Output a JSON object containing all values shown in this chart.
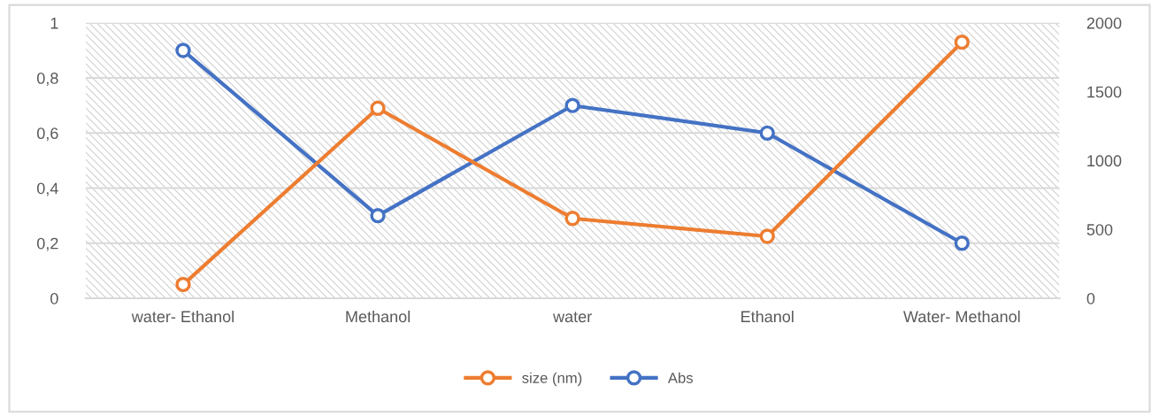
{
  "chart_data": {
    "type": "line",
    "categories": [
      "water- Ethanol",
      "Methanol",
      "water",
      "Ethanol",
      "Water- Methanol"
    ],
    "series": [
      {
        "name": "size (nm)",
        "color": "#ed7d31",
        "axis": "y2",
        "values": [
          100,
          1380,
          580,
          450,
          1860
        ]
      },
      {
        "name": "Abs",
        "color": "#4472c4",
        "values": [
          0.9,
          0.3,
          0.7,
          0.6,
          0.2
        ]
      }
    ],
    "ylim": [
      0,
      1
    ],
    "yticks": [
      0,
      {
        "value": 0.2,
        "label": "0,2"
      },
      {
        "value": 0.4,
        "label": "0,4"
      },
      {
        "value": 0.6,
        "label": "0,6"
      },
      {
        "value": 0.8,
        "label": "0,8"
      },
      1
    ],
    "y2lim": [
      0,
      2000
    ],
    "y2ticks": [
      0,
      500,
      1000,
      1500,
      2000
    ],
    "grid": true,
    "legend": "bottom",
    "marker": "circle",
    "line_style": "solid"
  }
}
